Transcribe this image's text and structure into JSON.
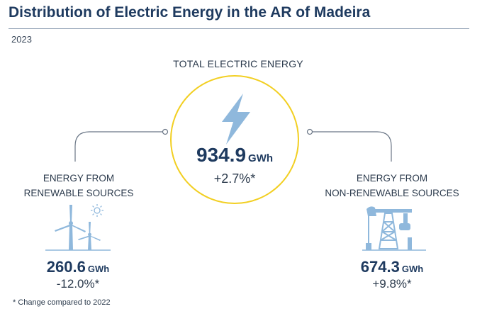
{
  "title": "Distribution of Electric Energy in the AR of Madeira",
  "year": "2023",
  "total": {
    "label": "TOTAL ELECTRIC ENERGY",
    "value": "934.9",
    "unit": "GWh",
    "change": "+2.7%*"
  },
  "renewable": {
    "label_line1": "ENERGY FROM",
    "label_line2": "RENEWABLE SOURCES",
    "value": "260.6",
    "unit": "GWh",
    "change": "-12.0%*"
  },
  "non_renewable": {
    "label_line1": "ENERGY FROM",
    "label_line2": "NON-RENEWABLE SOURCES",
    "value": "674.3",
    "unit": "GWh",
    "change": "+9.8%*"
  },
  "footnote": "* Change compared to 2022",
  "colors": {
    "title": "#1e3a5f",
    "circle": "#f2cf22",
    "icon": "#8fb8dc",
    "connector": "#6a7686"
  },
  "icons": [
    "lightning-bolt-icon",
    "wind-turbine-icon",
    "sun-icon",
    "oil-pump-icon"
  ]
}
